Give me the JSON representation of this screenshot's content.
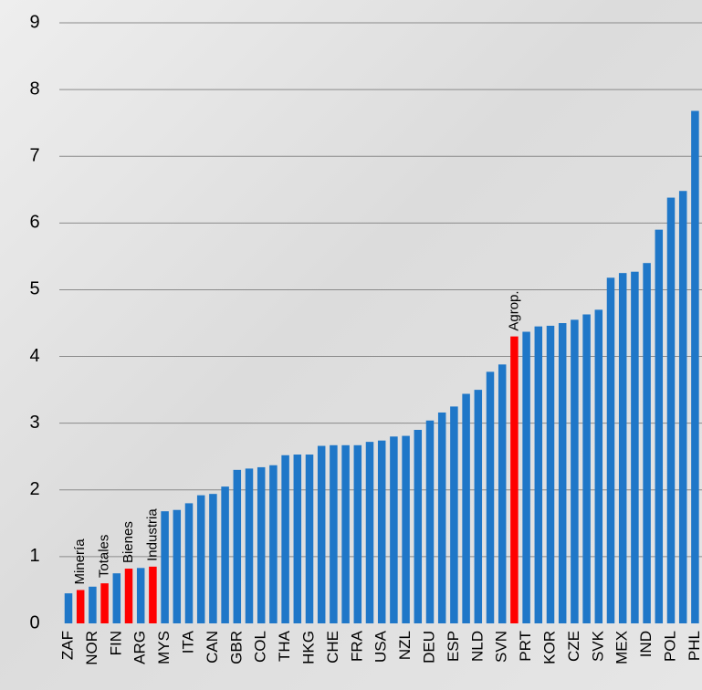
{
  "chart_data": {
    "type": "bar",
    "categories": [
      "ZAF",
      null,
      "NOR",
      null,
      "FIN",
      null,
      "ARG",
      null,
      "MYS",
      null,
      "ITA",
      null,
      "CAN",
      null,
      "GBR",
      null,
      "COL",
      null,
      "THA",
      null,
      "HKG",
      null,
      "CHE",
      null,
      "FRA",
      null,
      "USA",
      null,
      "NZL",
      null,
      "DEU",
      null,
      "ESP",
      null,
      "NLD",
      null,
      "SVN",
      null,
      "PRT",
      null,
      "KOR",
      null,
      "CZE",
      null,
      "SVK",
      null,
      "MEX",
      null,
      "IND",
      null,
      "POL",
      null,
      "PHL"
    ],
    "values": [
      0.45,
      0.5,
      0.55,
      0.6,
      0.75,
      0.82,
      0.83,
      0.85,
      1.68,
      1.7,
      1.8,
      1.92,
      1.94,
      2.05,
      2.3,
      2.32,
      2.34,
      2.37,
      2.52,
      2.53,
      2.53,
      2.66,
      2.67,
      2.67,
      2.67,
      2.72,
      2.74,
      2.8,
      2.81,
      2.9,
      3.04,
      3.16,
      3.25,
      3.44,
      3.5,
      3.77,
      3.88,
      4.3,
      4.37,
      4.45,
      4.46,
      4.5,
      4.55,
      4.63,
      4.7,
      5.18,
      5.25,
      5.27,
      5.4,
      5.9,
      6.38,
      6.48,
      7.68
    ],
    "colors": [
      "#1f77c8",
      "#ff0000",
      "#1f77c8",
      "#ff0000",
      "#1f77c8",
      "#ff0000",
      "#1f77c8",
      "#ff0000",
      "#1f77c8",
      "#1f77c8",
      "#1f77c8",
      "#1f77c8",
      "#1f77c8",
      "#1f77c8",
      "#1f77c8",
      "#1f77c8",
      "#1f77c8",
      "#1f77c8",
      "#1f77c8",
      "#1f77c8",
      "#1f77c8",
      "#1f77c8",
      "#1f77c8",
      "#1f77c8",
      "#1f77c8",
      "#1f77c8",
      "#1f77c8",
      "#1f77c8",
      "#1f77c8",
      "#1f77c8",
      "#1f77c8",
      "#1f77c8",
      "#1f77c8",
      "#1f77c8",
      "#1f77c8",
      "#1f77c8",
      "#1f77c8",
      "#ff0000",
      "#1f77c8",
      "#1f77c8",
      "#1f77c8",
      "#1f77c8",
      "#1f77c8",
      "#1f77c8",
      "#1f77c8",
      "#1f77c8",
      "#1f77c8",
      "#1f77c8",
      "#1f77c8",
      "#1f77c8",
      "#1f77c8",
      "#1f77c8",
      "#1f77c8"
    ],
    "annotations": [
      null,
      "Minería",
      null,
      "Totales",
      null,
      "Bienes",
      null,
      "Industria",
      null,
      null,
      null,
      null,
      null,
      null,
      null,
      null,
      null,
      null,
      null,
      null,
      null,
      null,
      null,
      null,
      null,
      null,
      null,
      null,
      null,
      null,
      null,
      null,
      null,
      null,
      null,
      null,
      null,
      "Agrop.",
      null,
      null,
      null,
      null,
      null,
      null,
      null,
      null,
      null,
      null,
      null,
      null,
      null,
      null,
      null,
      null,
      null,
      null
    ],
    "ylim": [
      0,
      9
    ],
    "yticks": [
      0,
      1,
      2,
      3,
      4,
      5,
      6,
      7,
      8,
      9
    ],
    "grid": true
  }
}
